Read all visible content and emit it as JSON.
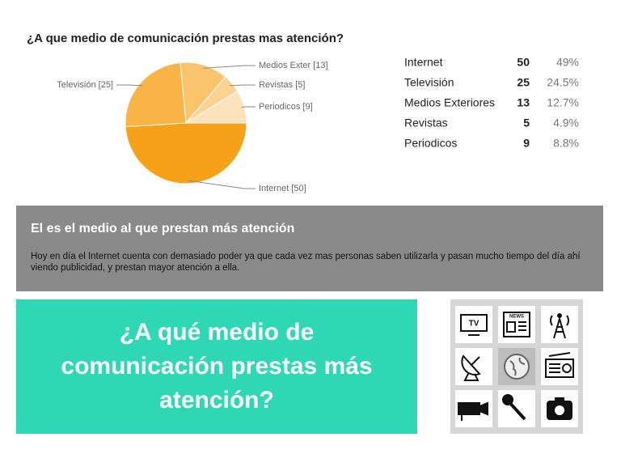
{
  "chart_data": {
    "type": "pie",
    "title": "¿A que medio de comunicación prestas mas atención?",
    "categories": [
      "Internet",
      "Televisión",
      "Medios Exter",
      "Revistas",
      "Periodicos"
    ],
    "values": [
      50,
      25,
      13,
      5,
      9
    ],
    "value_labels": [
      "Internet [50]",
      "Televisión [25]",
      "Medios Exter [13]",
      "Revistas [5]",
      "Periodicos [9]"
    ],
    "colors": [
      "#f6a117",
      "#f8b445",
      "#fac46c",
      "#fbd28f",
      "#fde3bd"
    ]
  },
  "table": {
    "rows": [
      [
        "Internet",
        "50",
        "49%"
      ],
      [
        "Televisión",
        "25",
        "24.5%"
      ],
      [
        "Medios Exteriores",
        "13",
        "12.7%"
      ],
      [
        "Revistas",
        "5",
        "4.9%"
      ],
      [
        "Periodicos",
        "9",
        "8.8%"
      ]
    ]
  },
  "info_box": {
    "heading": "El es el medio al que prestan más atención",
    "text": "Hoy en día el Internet cuenta con demasiado poder ya que cada vez mas personas saben utilizarla y pasan mucho tiempo del día ahí viendo publicidad, y prestan mayor atención a ella."
  },
  "banner": {
    "text": "¿A qué medio de comunicación prestas más atención?"
  },
  "icons": {
    "tv": "TV",
    "news": "NEWS"
  }
}
